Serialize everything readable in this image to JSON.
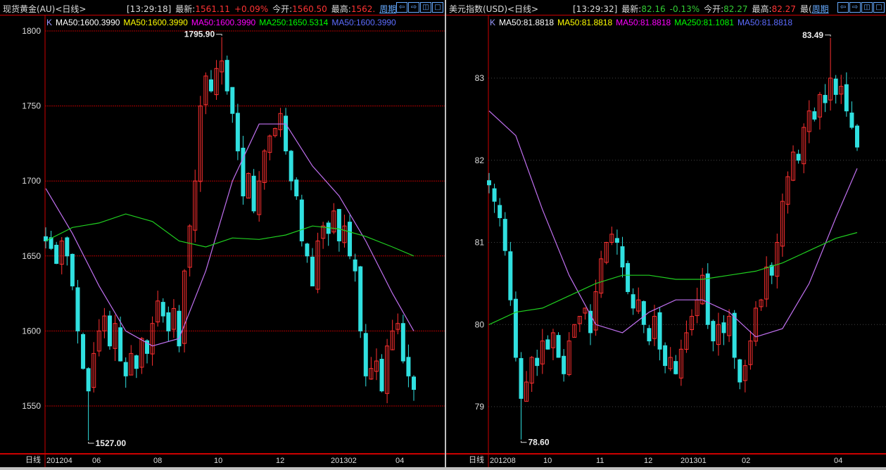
{
  "panels": [
    {
      "title": "现货黄金(AU)<日线>",
      "time": "[13:29:18]",
      "latest_label": "最新:",
      "latest": "1561.11",
      "change": "+0.09%",
      "open_label": "今开:",
      "open": "1560.50",
      "high_label": "最高:",
      "high": "1562.",
      "period": "周期",
      "ma_labels": [
        "K",
        "MA50:1600.3990",
        "MA50:1600.3990",
        "MA50:1600.3990",
        "MA250:1650.5314",
        "MA50:1600.3990"
      ],
      "axis_label": "日线",
      "x_labels": [
        "201204",
        "06",
        "08",
        "10",
        "12",
        "201302",
        "04"
      ]
    },
    {
      "title": "美元指数(USD)<日线>",
      "time": "[13:29:32]",
      "latest_label": "最新:",
      "latest": "82.16",
      "change": "-0.13%",
      "open_label": "今开:",
      "open": "82.27",
      "high_label": "最高:",
      "high": "82.27",
      "extra": "最(",
      "period": "周期",
      "ma_labels": [
        "K",
        "MA50:81.8818",
        "MA50:81.8818",
        "MA50:81.8818",
        "MA250:81.1081",
        "MA50:81.8818"
      ],
      "axis_label": "日线",
      "x_labels": [
        "201208",
        "10",
        "11",
        "12",
        "201301",
        "02",
        "04"
      ]
    }
  ],
  "colors": {
    "up": "#ff3030",
    "down": "#30e0e0",
    "ma50": "#c070f0",
    "ma250": "#20d020",
    "grid_left": "#b00000",
    "grid_right": "#444444",
    "ma_label_colors": [
      "#9999ff",
      "#ffffff",
      "#ffff00",
      "#ff00ff",
      "#00ff00",
      "#5c6cff"
    ]
  },
  "chart_data": [
    {
      "type": "candlestick",
      "ylim": [
        1520,
        1805
      ],
      "y_ticks": [
        "1800",
        "1750",
        "1700",
        "1650",
        "1600",
        "1550"
      ],
      "y_tick_values": [
        1800,
        1750,
        1700,
        1650,
        1600,
        1550
      ],
      "annotations": {
        "max": "1795.90",
        "min": "1527.00"
      },
      "max_index": 33,
      "min_index": 8,
      "close": [
        1660,
        1655,
        1645,
        1660,
        1650,
        1630,
        1600,
        1575,
        1560,
        1585,
        1600,
        1610,
        1590,
        1605,
        1580,
        1570,
        1585,
        1575,
        1595,
        1585,
        1605,
        1620,
        1610,
        1600,
        1615,
        1590,
        1640,
        1670,
        1700,
        1750,
        1770,
        1760,
        1775,
        1780,
        1760,
        1745,
        1720,
        1690,
        1705,
        1680,
        1700,
        1720,
        1730,
        1735,
        1745,
        1720,
        1700,
        1690,
        1660,
        1650,
        1630,
        1660,
        1670,
        1665,
        1680,
        1660,
        1670,
        1650,
        1640,
        1600,
        1570,
        1575,
        1580,
        1560,
        1590,
        1600,
        1605,
        1580,
        1570,
        1561
      ],
      "ma50_every5": [
        1695,
        1665,
        1630,
        1600,
        1590,
        1595,
        1640,
        1700,
        1738,
        1738,
        1710,
        1690,
        1660,
        1625,
        1600
      ],
      "ma250_every5": [
        1660,
        1669,
        1672,
        1678,
        1673,
        1660,
        1656,
        1662,
        1661,
        1664,
        1670,
        1668,
        1663,
        1656,
        1650
      ]
    },
    {
      "type": "candlestick",
      "ylim": [
        78.4,
        83.6
      ],
      "y_ticks": [
        "83",
        "82",
        "81",
        "80",
        "79"
      ],
      "y_tick_values": [
        83,
        82,
        81,
        80,
        79
      ],
      "annotations": {
        "max": "83.49",
        "min": "78.60"
      },
      "max_index": 64,
      "min_index": 6,
      "close": [
        81.7,
        81.5,
        81.3,
        80.9,
        80.3,
        79.6,
        79.1,
        79.3,
        79.6,
        79.5,
        79.8,
        79.7,
        79.9,
        79.6,
        79.4,
        79.8,
        80.0,
        80.1,
        80.2,
        79.9,
        80.4,
        80.8,
        81.0,
        81.1,
        81.0,
        80.7,
        80.4,
        80.2,
        80.3,
        80.0,
        79.8,
        80.1,
        79.7,
        79.5,
        79.6,
        79.4,
        79.7,
        79.9,
        80.1,
        80.3,
        80.6,
        80.0,
        79.8,
        80.0,
        79.9,
        80.1,
        79.6,
        79.3,
        79.5,
        79.8,
        80.2,
        80.3,
        80.7,
        80.6,
        81.0,
        81.5,
        81.8,
        82.1,
        82.0,
        82.4,
        82.6,
        82.5,
        82.8,
        82.7,
        83.0,
        82.8,
        82.9,
        82.6,
        82.4,
        82.16
      ],
      "ma50_every5": [
        82.6,
        82.3,
        81.4,
        80.6,
        80.0,
        79.9,
        80.15,
        80.3,
        80.3,
        80.15,
        79.85,
        79.95,
        80.5,
        81.3,
        81.9
      ],
      "ma250_every5": [
        80.0,
        80.15,
        80.2,
        80.35,
        80.5,
        80.6,
        80.6,
        80.55,
        80.55,
        80.6,
        80.65,
        80.75,
        80.9,
        81.05,
        81.12
      ]
    }
  ]
}
